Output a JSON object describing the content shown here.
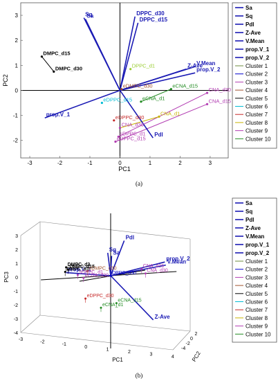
{
  "chart_data": [
    {
      "type": "scatter",
      "panel_label": "(a)",
      "xlabel": "PC1",
      "ylabel": "PC2",
      "xlim": [
        -3.3,
        3.6
      ],
      "ylim": [
        -2.7,
        3.5
      ],
      "xticks": [
        -3,
        -2,
        -1,
        0,
        1,
        2,
        3
      ],
      "yticks": [
        -2,
        -1,
        0,
        1,
        2,
        3
      ],
      "grid": false,
      "legend_position": "right",
      "vectors": [
        {
          "name": "Sq",
          "x": -1.2,
          "y": 2.9
        },
        {
          "name": "Sa",
          "x": -1.15,
          "y": 2.85
        },
        {
          "name": "DPPC_d30",
          "x": 0.5,
          "y": 2.95
        },
        {
          "name": "DPPC_d15",
          "x": 0.6,
          "y": 2.7
        },
        {
          "name": "Z-Ave",
          "x": 2.2,
          "y": 0.85
        },
        {
          "name": "V.Mean",
          "x": 2.5,
          "y": 0.95
        },
        {
          "name": "prop.V_2",
          "x": 2.5,
          "y": 0.7
        },
        {
          "name": "prop.V_1",
          "x": -2.5,
          "y": -1.1
        },
        {
          "name": "Pdl",
          "x": 1.1,
          "y": -1.9
        }
      ],
      "points": [
        {
          "label": "DMPC_d15",
          "x": -2.6,
          "y": 1.35,
          "color": "#000000",
          "bold": true
        },
        {
          "label": "DMPC_d30",
          "x": -2.2,
          "y": 0.75,
          "color": "#000000",
          "bold": true
        },
        {
          "label": "eDMPC_d30",
          "x": 0.05,
          "y": 0.05,
          "color": "#a0522d",
          "bold": false
        },
        {
          "label": "DPPC_d1",
          "x": 0.35,
          "y": 0.85,
          "color": "#9acd32",
          "bold": false
        },
        {
          "label": "eDPPC_d15",
          "x": -0.6,
          "y": -0.5,
          "color": "#00bcd4",
          "bold": false
        },
        {
          "label": "eCNA_d1",
          "x": 0.7,
          "y": -0.45,
          "color": "#228b22",
          "bold": false
        },
        {
          "label": "eCNA_d15",
          "x": 1.7,
          "y": 0.05,
          "color": "#228b22",
          "bold": false
        },
        {
          "label": "eDPPC_d30",
          "x": -0.2,
          "y": -1.2,
          "color": "#c62828",
          "bold": false
        },
        {
          "label": "CNA_d30",
          "x": 0.0,
          "y": -1.5,
          "color": "#b23cb2",
          "bold": false
        },
        {
          "label": "sDPPC_d1",
          "x": -0.05,
          "y": -1.85,
          "color": "#b23cb2",
          "bold": false
        },
        {
          "label": "eDPPC_d15",
          "x": -0.15,
          "y": -2.05,
          "color": "#b23cb2",
          "bold": false
        },
        {
          "label": "CNA_d1",
          "x": 1.3,
          "y": -1.05,
          "color": "#c8b400",
          "bold": false
        },
        {
          "label": "CNA_d30",
          "x": 2.9,
          "y": -0.1,
          "color": "#b23cb2",
          "bold": false
        },
        {
          "label": "CNA_d15",
          "x": 2.9,
          "y": -0.55,
          "color": "#b23cb2",
          "bold": false
        }
      ],
      "segments": [
        {
          "from": [
            -2.6,
            1.35
          ],
          "to": [
            -2.2,
            0.75
          ],
          "color": "#000000"
        },
        {
          "from": [
            0.7,
            -0.45
          ],
          "to": [
            1.7,
            0.05
          ],
          "color": "#228b22"
        },
        {
          "from": [
            -0.05,
            -1.85
          ],
          "to": [
            2.9,
            -0.1
          ],
          "color": "#b23cb2"
        },
        {
          "from": [
            -0.15,
            -2.05
          ],
          "to": [
            2.9,
            -0.55
          ],
          "color": "#b23cb2"
        },
        {
          "from": [
            0.0,
            -1.5
          ],
          "to": [
            1.3,
            -1.05
          ],
          "color": "#c8b400"
        }
      ]
    },
    {
      "type": "scatter",
      "panel_label": "(b)",
      "xlabel": "PC1",
      "ylabel": "PC3",
      "zlabel": "PC2",
      "x_tick_labels": [
        "-3",
        "-2",
        "-1",
        "0",
        "1",
        "2",
        "3",
        "4"
      ],
      "z_tick_labels": [
        "-4",
        "-2",
        "0",
        "2"
      ],
      "y_tick_labels": [
        "-4",
        "-3",
        "-2",
        "-1",
        "0",
        "1",
        "2",
        "3"
      ],
      "legend_position": "right",
      "vectors": [
        {
          "name": "Pdl",
          "x": 0.7,
          "y": 2.3
        },
        {
          "name": "Sq",
          "x": -0.15,
          "y": 1.5
        },
        {
          "name": "Sa",
          "x": 0.05,
          "y": 1.3
        },
        {
          "name": "prop.V_2",
          "x": 2.8,
          "y": 0.9
        },
        {
          "name": "V.Mean",
          "x": 2.85,
          "y": 0.7
        },
        {
          "name": "Z-Ave",
          "x": 2.2,
          "y": -2.9
        },
        {
          "name": "prop.V_1",
          "x": -2.3,
          "y": 0.2
        }
      ],
      "points": [
        {
          "label": "DMPC_d3",
          "x": -2.3,
          "y": 0.55,
          "color": "#000000",
          "bold": true
        },
        {
          "label": "DMPC_d15",
          "x": -2.2,
          "y": 0.4,
          "color": "#000000",
          "bold": true
        },
        {
          "label": "DMPC_d1",
          "x": -2.35,
          "y": 0.25,
          "color": "#000000",
          "bold": true
        },
        {
          "label": "eDMPC_d30",
          "x": -1.2,
          "y": 0.3,
          "color": "#a0522d",
          "bold": false
        },
        {
          "label": "sDPPC_d1",
          "x": -1.7,
          "y": 0.05,
          "color": "#b23cb2",
          "bold": false
        },
        {
          "label": "eCNA_d30",
          "x": -1.4,
          "y": -0.15,
          "color": "#b23cb2",
          "bold": false
        },
        {
          "label": "eDPPC_d30",
          "x": -1.3,
          "y": -1.5,
          "color": "#c62828",
          "bold": false
        },
        {
          "label": "eCNA_d1",
          "x": -0.5,
          "y": -2.1,
          "color": "#228b22",
          "bold": false
        },
        {
          "label": "eCNA_d15",
          "x": 0.3,
          "y": -1.8,
          "color": "#228b22",
          "bold": false
        },
        {
          "label": "DPPC_d30",
          "x": 0.0,
          "y": 0.0,
          "color": "#0000c8",
          "bold": false
        },
        {
          "label": "CNA_d15",
          "x": 1.6,
          "y": 0.45,
          "color": "#b23cb2",
          "bold": false
        },
        {
          "label": "CNA_d30",
          "x": 1.8,
          "y": 0.15,
          "color": "#b23cb2",
          "bold": false
        }
      ]
    }
  ],
  "legend_a": {
    "vector_entries": [
      "Sa",
      "Sq",
      "Pdl",
      "Z-Ave",
      "V.Mean",
      "prop.V_1",
      "prop.V_2"
    ],
    "cluster_entries": [
      "Cluster 1",
      "Cluster 2",
      "Cluster 3",
      "Cluster 4",
      "Cluster 5",
      "Cluster 6",
      "Cluster 7",
      "Cluster 8",
      "Cluster 9",
      "Cluster 10"
    ],
    "cluster_colors": [
      "#6e8b3d",
      "#0000cd",
      "#b23cb2",
      "#a0522d",
      "#000000",
      "#00bcd4",
      "#c62828",
      "#c8b400",
      "#b23cb2",
      "#228b22"
    ]
  },
  "legend_b": {
    "vector_entries": [
      "Sa",
      "Sq",
      "Pdl",
      "Z-Ave",
      "V.Mean",
      "prop.V_1",
      "prop.V_2"
    ],
    "cluster_entries": [
      "Cluster 1",
      "Cluster 2",
      "Cluster 3",
      "Cluster 4",
      "Cluster 5",
      "Cluster 6",
      "Cluster 7",
      "Cluster 8",
      "Cluster 9",
      "Cluster 10"
    ],
    "cluster_colors": [
      "#6e8b3d",
      "#0000cd",
      "#b23cb2",
      "#a0522d",
      "#000000",
      "#00bcd4",
      "#c62828",
      "#c8b400",
      "#b23cb2",
      "#228b22"
    ]
  },
  "colors": {
    "vector": "#1a1ab4",
    "axis": "#000000"
  }
}
